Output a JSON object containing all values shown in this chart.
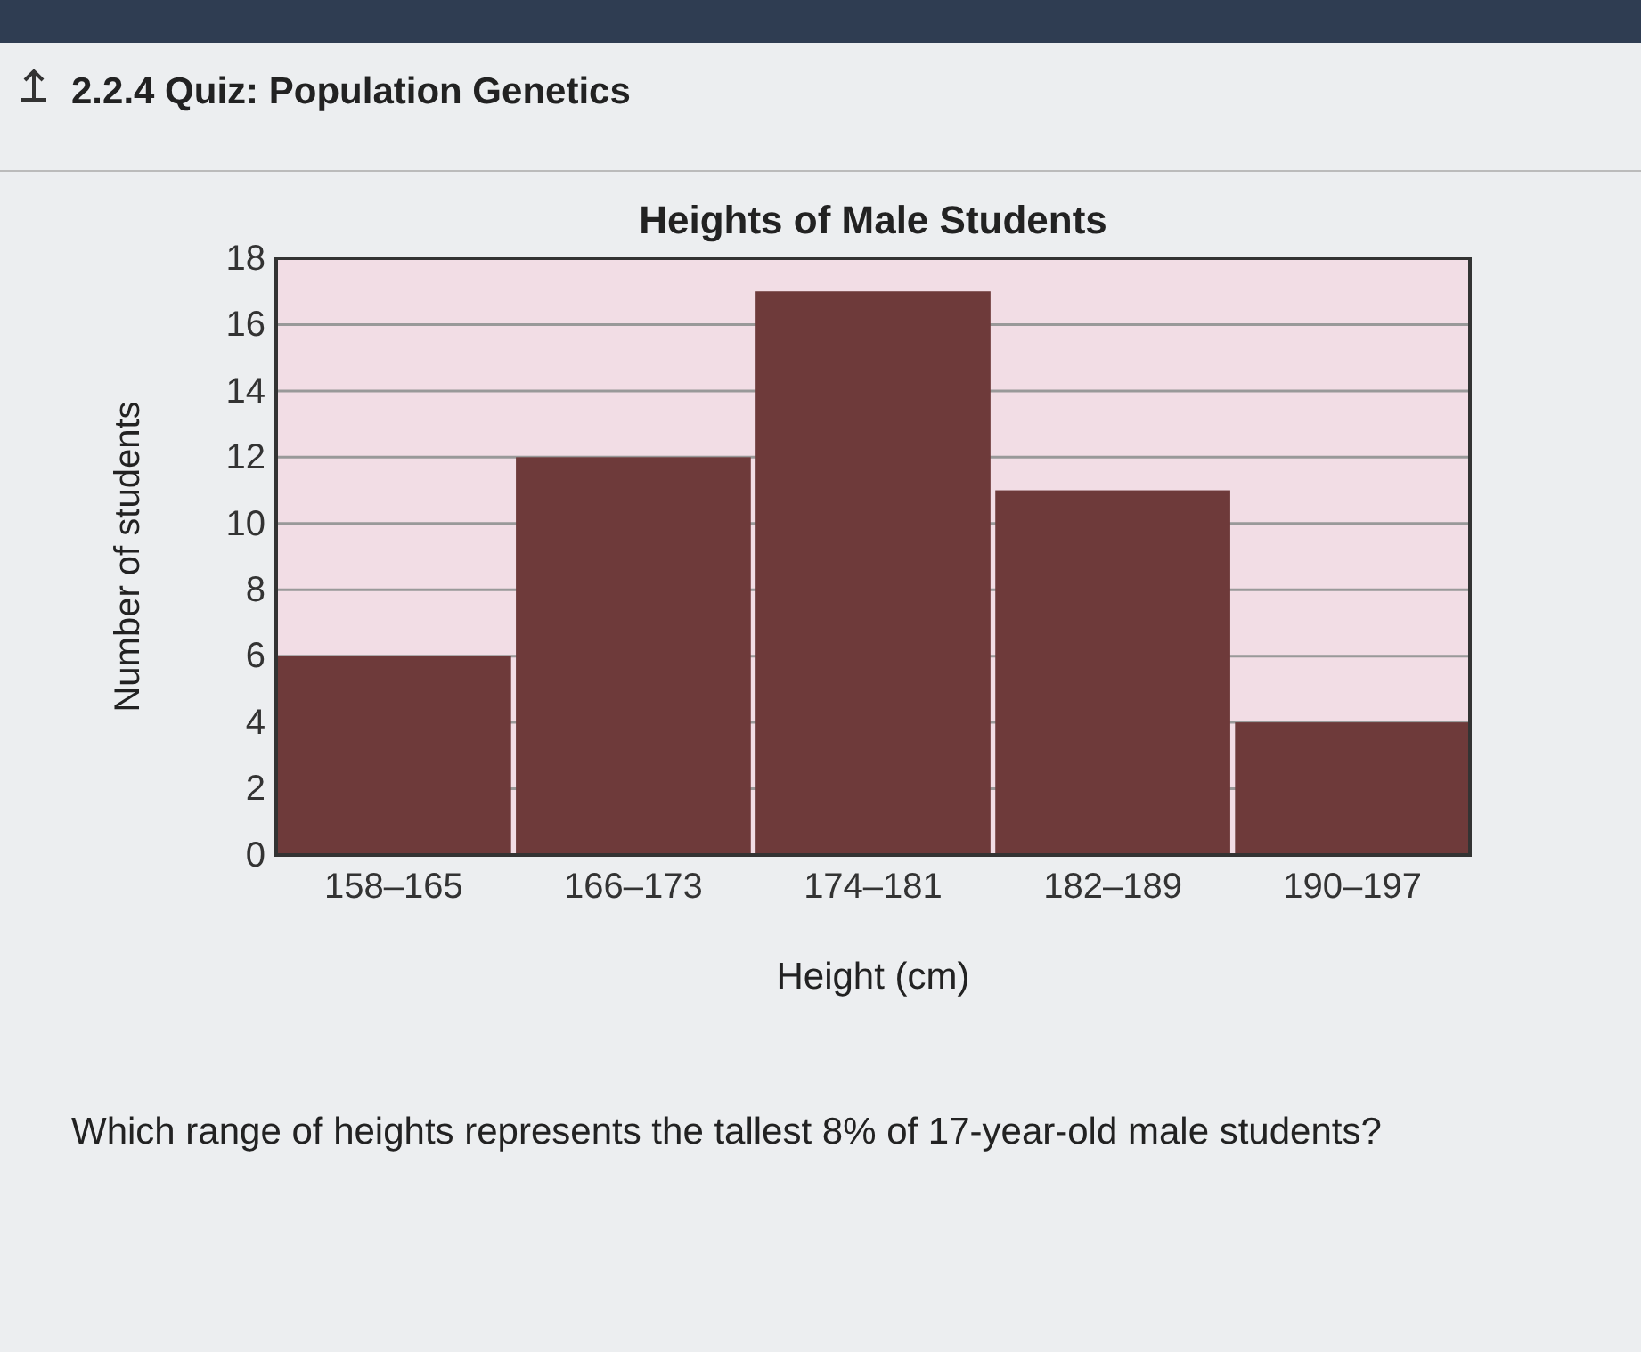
{
  "chart_data": {
    "type": "bar",
    "title": "Heights of Male Students",
    "xlabel": "Height (cm)",
    "ylabel": "Number of students",
    "categories": [
      "158–165",
      "166–173",
      "174–181",
      "182–189",
      "190–197"
    ],
    "values": [
      6,
      12,
      17,
      11,
      4
    ],
    "color": "#6e3a3a",
    "ylim": [
      0,
      18
    ],
    "yticks": [
      0,
      2,
      4,
      6,
      8,
      10,
      12,
      14,
      16,
      18
    ],
    "grid": "y",
    "annotations": [
      "2.2.4 Quiz: Population Genetics",
      "Which range of heights represents the tallest 8% of 17-year-old male students?"
    ]
  }
}
